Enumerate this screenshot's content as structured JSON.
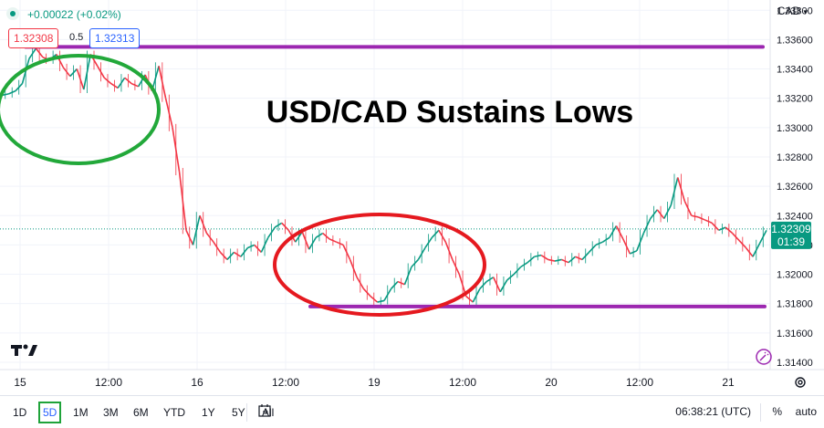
{
  "header": {
    "change": "+0.00022 (+0.02%)",
    "sell_price": "1.32308",
    "spread": "0.5",
    "buy_price": "1.32313",
    "currency": "CAD"
  },
  "colors": {
    "up": "#089981",
    "down": "#f23645",
    "purple_line": "#9c27b0",
    "green_ellipse": "#22a83a",
    "red_ellipse": "#e5191f"
  },
  "chart_data": {
    "type": "line",
    "title": "USD/CAD Sustains Lows",
    "x_ticks": [
      "15",
      "12:00",
      "16",
      "12:00",
      "19",
      "12:00",
      "20",
      "12:00",
      "21"
    ],
    "y_ticks": [
      "1.33800",
      "1.33600",
      "1.33400",
      "1.33200",
      "1.33000",
      "1.32800",
      "1.32600",
      "1.32400",
      "1.32200",
      "1.32000",
      "1.31800",
      "1.31600",
      "1.31400"
    ],
    "ylim": [
      1.3135,
      1.3387
    ],
    "current_price": "1.32309",
    "countdown": "01:39",
    "series": [
      {
        "values": [
          1.3322,
          1.3323,
          1.3325,
          1.333,
          1.3347,
          1.3354,
          1.3348,
          1.3346,
          1.335,
          1.3341,
          1.3335,
          1.334,
          1.3326,
          1.335,
          1.3342,
          1.3334,
          1.333,
          1.3327,
          1.3334,
          1.333,
          1.3328,
          1.3336,
          1.3325,
          1.3342,
          1.332,
          1.33,
          1.327,
          1.323,
          1.322,
          1.324,
          1.3228,
          1.3222,
          1.3215,
          1.321,
          1.3215,
          1.3212,
          1.3218,
          1.322,
          1.3215,
          1.3225,
          1.3232,
          1.3235,
          1.323,
          1.3222,
          1.3229,
          1.3217,
          1.3225,
          1.3228,
          1.3224,
          1.3222,
          1.322,
          1.321,
          1.3198,
          1.319,
          1.3185,
          1.3181,
          1.3182,
          1.319,
          1.3195,
          1.3193,
          1.3205,
          1.321,
          1.3218,
          1.3225,
          1.323,
          1.3222,
          1.321,
          1.32,
          1.3185,
          1.3181,
          1.319,
          1.3195,
          1.3198,
          1.3188,
          1.3196,
          1.32,
          1.3205,
          1.3208,
          1.3212,
          1.3213,
          1.321,
          1.3209,
          1.321,
          1.3208,
          1.3212,
          1.321,
          1.3215,
          1.322,
          1.3222,
          1.3225,
          1.3233,
          1.3224,
          1.3214,
          1.3216,
          1.3228,
          1.3238,
          1.3244,
          1.3238,
          1.3247,
          1.3266,
          1.325,
          1.324,
          1.3239,
          1.3237,
          1.3235,
          1.323,
          1.3232,
          1.3228,
          1.3223,
          1.3218,
          1.3212,
          1.3221,
          1.323
        ]
      }
    ],
    "annotations": {
      "resistance_line": 1.3355,
      "support_line": 1.3178
    }
  }
}
